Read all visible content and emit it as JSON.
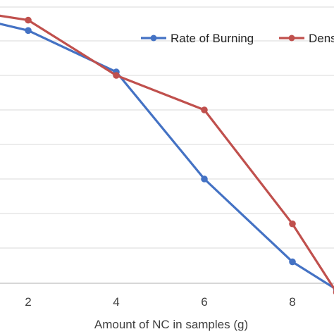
{
  "chart_data": {
    "type": "line",
    "title": "",
    "xlabel": "Amount of NC in samples (g)",
    "ylabel": "",
    "x_ticks": [
      2,
      4,
      6,
      8
    ],
    "series": [
      {
        "name": "Rate of Burning",
        "color": "#4472C4",
        "x": [
          1,
          2,
          4,
          6,
          8,
          9
        ],
        "y": [
          0.65,
          0.575,
          0.275,
          -0.5,
          -1.1,
          -1.3
        ]
      },
      {
        "name": "Density",
        "color": "#C0504D",
        "x": [
          1,
          2,
          4,
          6,
          8,
          9
        ],
        "y": [
          0.7,
          0.65,
          0.25,
          0.0,
          -0.825,
          -1.32
        ]
      }
    ],
    "legend_text": [
      "Rate of Burning",
      "Dens"
    ],
    "legend_position": "top-right",
    "grid": true,
    "colors": {
      "grid": "#d9d9d9",
      "axis": "#bfbfbf"
    }
  }
}
